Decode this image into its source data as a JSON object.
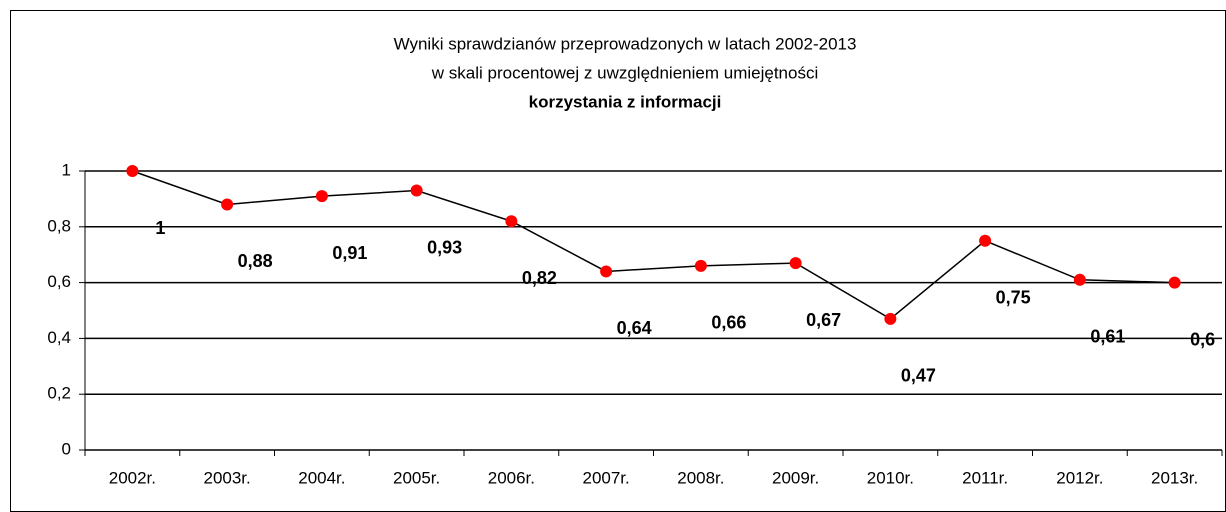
{
  "chart_data": {
    "type": "line",
    "title": [
      "Wyniki sprawdzianów przeprowadzonych w latach 2002-2013",
      "w skali procentowej z uwzględnieniem umiejętności",
      "korzystania z informacji"
    ],
    "categories": [
      "2002r.",
      "2003r.",
      "2004r.",
      "2005r.",
      "2006r.",
      "2007r.",
      "2008r.",
      "2009r.",
      "2010r.",
      "2011r.",
      "2012r.",
      "2013r."
    ],
    "values": [
      1,
      0.88,
      0.91,
      0.93,
      0.82,
      0.64,
      0.66,
      0.67,
      0.47,
      0.75,
      0.61,
      0.6
    ],
    "value_labels": [
      "1",
      "0,88",
      "0,91",
      "0,93",
      "0,82",
      "0,64",
      "0,66",
      "0,67",
      "0,47",
      "0,75",
      "0,61",
      "0,6"
    ],
    "color": "#000000",
    "marker_color": "#ff0000",
    "ylim": [
      0,
      1
    ],
    "yticks": [
      0,
      {
        "value": 0.2,
        "label": "0,2"
      },
      {
        "value": 0.4,
        "label": "0,4"
      },
      {
        "value": 0.6,
        "label": "0,6"
      },
      {
        "value": 0.8,
        "label": "0,8"
      },
      1
    ],
    "grid": true
  }
}
